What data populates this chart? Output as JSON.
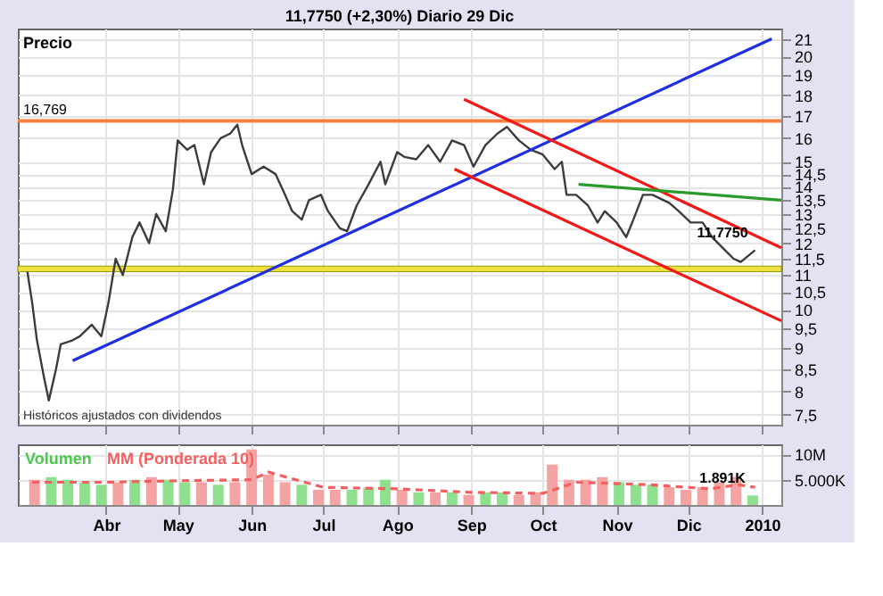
{
  "chart_data": [
    {
      "type": "line",
      "title": "11,7750 (+2,30%)   Diario  29 Dic",
      "ylabel": "Precio",
      "log": "y",
      "grid": true,
      "legend": false,
      "tick_labels": "y",
      "xlim": [
        "2009-02-23",
        "2010-01-09"
      ],
      "xticks": [
        {
          "value": "2009-04-01",
          "label": null
        },
        {
          "value": "2009-05-01",
          "label": null
        },
        {
          "value": "2009-06-01",
          "label": null
        },
        {
          "value": "2009-07-01",
          "label": null
        },
        {
          "value": "2009-08-01",
          "label": null
        },
        {
          "value": "2009-09-01",
          "label": null
        },
        {
          "value": "2009-10-01",
          "label": null
        },
        {
          "value": "2009-11-01",
          "label": null
        },
        {
          "value": "2009-12-01",
          "label": null
        },
        {
          "value": "2010-01-01",
          "label": null
        }
      ],
      "ylim": [
        7.3,
        21.6
      ],
      "yticks": [
        {
          "value": 7.5,
          "label": "7,5"
        },
        {
          "value": 8,
          "label": "8"
        },
        {
          "value": 8.5,
          "label": "8,5"
        },
        {
          "value": 9,
          "label": "9"
        },
        {
          "value": 9.5,
          "label": "9,5"
        },
        {
          "value": 10,
          "label": "10"
        },
        {
          "value": 10.5,
          "label": "10,5"
        },
        {
          "value": 11,
          "label": "11"
        },
        {
          "value": 11.5,
          "label": "11,5"
        },
        {
          "value": 12,
          "label": "12"
        },
        {
          "value": 12.5,
          "label": "12,5"
        },
        {
          "value": 13,
          "label": "13"
        },
        {
          "value": 13.5,
          "label": "13,5"
        },
        {
          "value": 14,
          "label": "14"
        },
        {
          "value": 14.5,
          "label": "14,5"
        },
        {
          "value": 15,
          "label": "15"
        },
        {
          "value": 16,
          "label": "16"
        },
        {
          "value": 17,
          "label": "17"
        },
        {
          "value": 18,
          "label": "18"
        },
        {
          "value": 19,
          "label": "19"
        },
        {
          "value": 20,
          "label": "20"
        },
        {
          "value": 21,
          "label": "21"
        }
      ],
      "x": [
        "2009-02-27",
        "2009-03-01",
        "2009-03-03",
        "2009-03-06",
        "2009-03-08",
        "2009-03-11",
        "2009-03-13",
        "2009-03-18",
        "2009-03-21",
        "2009-03-26",
        "2009-03-30",
        "2009-04-02",
        "2009-04-05",
        "2009-04-08",
        "2009-04-12",
        "2009-04-15",
        "2009-04-19",
        "2009-04-22",
        "2009-04-26",
        "2009-04-29",
        "2009-05-01",
        "2009-05-05",
        "2009-05-08",
        "2009-05-12",
        "2009-05-15",
        "2009-05-19",
        "2009-05-23",
        "2009-05-26",
        "2009-05-28",
        "2009-06-01",
        "2009-06-06",
        "2009-06-11",
        "2009-06-15",
        "2009-06-18",
        "2009-06-22",
        "2009-06-25",
        "2009-06-30",
        "2009-07-03",
        "2009-07-08",
        "2009-07-11",
        "2009-07-15",
        "2009-07-20",
        "2009-07-25",
        "2009-07-27",
        "2009-08-01",
        "2009-08-04",
        "2009-08-09",
        "2009-08-14",
        "2009-08-19",
        "2009-08-24",
        "2009-08-29",
        "2009-09-02",
        "2009-09-07",
        "2009-09-12",
        "2009-09-16",
        "2009-09-21",
        "2009-09-26",
        "2009-10-01",
        "2009-10-06",
        "2009-10-09",
        "2009-10-11",
        "2009-10-15",
        "2009-10-20",
        "2009-10-24",
        "2009-10-27",
        "2009-11-01",
        "2009-11-05",
        "2009-11-08",
        "2009-11-12",
        "2009-11-16",
        "2009-11-23",
        "2009-11-27",
        "2009-12-02",
        "2009-12-07",
        "2009-12-11",
        "2009-12-16",
        "2009-12-20",
        "2009-12-23",
        "2009-12-29"
      ],
      "series": [
        {
          "color": "#3c3c3c",
          "values": [
            11.1,
            10.2,
            9.2,
            8.3,
            7.8,
            8.5,
            9.1,
            9.2,
            9.3,
            9.6,
            9.3,
            10.2,
            11.5,
            11.0,
            12.2,
            12.7,
            12.0,
            13.0,
            12.4,
            13.9,
            15.9,
            15.5,
            15.7,
            14.1,
            15.4,
            16.0,
            16.2,
            16.6,
            15.7,
            14.5,
            14.8,
            14.5,
            13.7,
            13.1,
            12.8,
            13.5,
            13.7,
            13.1,
            12.5,
            12.4,
            13.3,
            14.1,
            15.0,
            14.1,
            15.4,
            15.2,
            15.1,
            15.7,
            15.0,
            15.9,
            15.7,
            14.8,
            15.7,
            16.2,
            16.5,
            15.9,
            15.5,
            15.3,
            14.7,
            15.0,
            13.7,
            13.7,
            13.3,
            12.7,
            13.1,
            12.7,
            12.2,
            12.8,
            13.7,
            13.7,
            13.4,
            13.1,
            12.7,
            12.7,
            12.2,
            11.8,
            11.5,
            11.4,
            11.775
          ]
        },
        {
          "type": "line",
          "color": "#1f2fe0",
          "x": [
            "2009-03-18",
            "2010-01-05"
          ],
          "values": [
            8.7,
            21.0
          ]
        },
        {
          "type": "line",
          "color": "#f01818",
          "x": [
            "2009-08-29",
            "2010-01-09"
          ],
          "values": [
            17.8,
            11.85
          ]
        },
        {
          "type": "line",
          "color": "#f01818",
          "x": [
            "2009-08-25",
            "2010-01-09"
          ],
          "values": [
            14.7,
            9.7
          ]
        },
        {
          "type": "line",
          "color": "#2a9a2a",
          "x": [
            "2009-10-16",
            "2010-01-09"
          ],
          "values": [
            14.1,
            13.5
          ]
        }
      ],
      "ref_lines": [
        {
          "axis": "y",
          "value": 16.769,
          "label": "16,769",
          "color": "#f88040"
        }
      ],
      "bands": [
        {
          "axis": "y",
          "from": 11.1,
          "to": 11.27,
          "color": "#f0e040"
        }
      ],
      "annotations": [
        "Históricos ajustados con dividendos",
        {
          "text": "11,7750",
          "x": "2009-12-29",
          "y": 11.775
        }
      ]
    },
    {
      "type": "bar",
      "grid": true,
      "legend": "top left",
      "xlim": [
        "2009-02-23",
        "2010-01-09"
      ],
      "xticks": [
        {
          "value": "2009-04-01",
          "label": "Abr"
        },
        {
          "value": "2009-05-01",
          "label": "May"
        },
        {
          "value": "2009-06-01",
          "label": "Jun"
        },
        {
          "value": "2009-07-01",
          "label": "Jul"
        },
        {
          "value": "2009-08-01",
          "label": "Ago"
        },
        {
          "value": "2009-09-01",
          "label": "Sep"
        },
        {
          "value": "2009-10-01",
          "label": "Oct"
        },
        {
          "value": "2009-11-01",
          "label": "Nov"
        },
        {
          "value": "2009-12-01",
          "label": "Dic"
        },
        {
          "value": "2010-01-01",
          "label": "2010"
        }
      ],
      "ylim": [
        0,
        12
      ],
      "yticks": [
        {
          "value": 5,
          "label": "5.000K"
        },
        {
          "value": 10,
          "label": "10M"
        }
      ],
      "x": [
        "2009-03-02",
        "2009-03-09",
        "2009-03-16",
        "2009-03-23",
        "2009-03-30",
        "2009-04-06",
        "2009-04-13",
        "2009-04-20",
        "2009-04-27",
        "2009-05-04",
        "2009-05-11",
        "2009-05-18",
        "2009-05-25",
        "2009-06-01",
        "2009-06-08",
        "2009-06-15",
        "2009-06-22",
        "2009-06-29",
        "2009-07-06",
        "2009-07-13",
        "2009-07-20",
        "2009-07-27",
        "2009-08-03",
        "2009-08-10",
        "2009-08-17",
        "2009-08-24",
        "2009-08-31",
        "2009-09-07",
        "2009-09-14",
        "2009-09-21",
        "2009-09-28",
        "2009-10-05",
        "2009-10-12",
        "2009-10-19",
        "2009-10-26",
        "2009-11-02",
        "2009-11-09",
        "2009-11-16",
        "2009-11-23",
        "2009-11-30",
        "2009-12-07",
        "2009-12-14",
        "2009-12-21",
        "2009-12-28"
      ],
      "series": [
        {
          "name": "Volumen",
          "color": "#4cc84c",
          "values": [
            5,
            5.5,
            5,
            4.5,
            4,
            4.5,
            5,
            5.5,
            5,
            4.5,
            4.5,
            4,
            4.5,
            11,
            6,
            4.5,
            4,
            3,
            3,
            3,
            3.5,
            5,
            3,
            2.5,
            2.5,
            2.5,
            2,
            2.5,
            2.5,
            2,
            2.5,
            8,
            5,
            5,
            5.5,
            4.5,
            4,
            4,
            3.5,
            3,
            3.5,
            4.5,
            5.5,
            1.891
          ],
          "colors": [
            "#f4a3a3",
            "#8ee08e",
            "#8ee08e",
            "#8ee08e",
            "#8ee08e",
            "#f4a3a3",
            "#8ee08e",
            "#f4a3a3",
            "#8ee08e",
            "#8ee08e",
            "#f4a3a3",
            "#8ee08e",
            "#f4a3a3",
            "#f4a3a3",
            "#f4a3a3",
            "#f4a3a3",
            "#8ee08e",
            "#f4a3a3",
            "#f4a3a3",
            "#8ee08e",
            "#8ee08e",
            "#8ee08e",
            "#f4a3a3",
            "#8ee08e",
            "#f4a3a3",
            "#8ee08e",
            "#f4a3a3",
            "#8ee08e",
            "#8ee08e",
            "#f4a3a3",
            "#f4a3a3",
            "#f4a3a3",
            "#f4a3a3",
            "#f4a3a3",
            "#f4a3a3",
            "#8ee08e",
            "#8ee08e",
            "#8ee08e",
            "#f4a3a3",
            "#f4a3a3",
            "#f4a3a3",
            "#f4a3a3",
            "#f4a3a3",
            "#8ee08e"
          ]
        },
        {
          "name": "MM (Ponderada 10)",
          "type": "line",
          "line_style": "dashed",
          "color": "#f06060",
          "x": [
            "2009-03-01",
            "2009-04-01",
            "2009-05-01",
            "2009-06-01",
            "2009-06-08",
            "2009-07-01",
            "2009-08-01",
            "2009-09-01",
            "2009-10-01",
            "2009-10-15",
            "2009-11-15",
            "2009-12-10",
            "2009-12-22",
            "2009-12-29"
          ],
          "values": [
            4.5,
            4.5,
            4.8,
            5,
            6.5,
            3.5,
            3.2,
            2.5,
            2.3,
            4.5,
            4,
            3.2,
            4,
            3.5
          ]
        }
      ],
      "annotations": [
        {
          "text": "1.891K",
          "x": "2009-12-28",
          "y": 1.891
        }
      ]
    }
  ]
}
